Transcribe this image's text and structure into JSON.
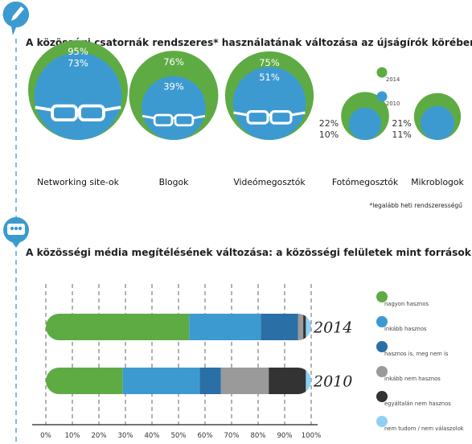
{
  "section1": {
    "title": "A közösségi csatornák rendszeres* használatának változása az újságírók körében",
    "footnote": "*legalább heti rendszerességű",
    "legend": [
      {
        "label": "2014",
        "color": "#5eab44"
      },
      {
        "label": "2010",
        "color": "#3d9ad1"
      }
    ]
  },
  "section2": {
    "title": "A közösségi média megítélésének változása: a közösségi felületek mint források hasznossága",
    "legend": [
      {
        "label": "nagyon hasznos",
        "color": "#5eab44"
      },
      {
        "label": "inkább hasznos",
        "color": "#3d9ad1"
      },
      {
        "label": "hasznos is, meg nem is",
        "color": "#2a6fa6"
      },
      {
        "label": "inkább nem hasznos",
        "color": "#9a9a9a"
      },
      {
        "label": "egyáltalán nem hasznos",
        "color": "#333333"
      },
      {
        "label": "nem tudom / nem válaszolok",
        "color": "#8fd0f2"
      }
    ]
  },
  "chart_data": [
    {
      "type": "bubble",
      "title": "A közösségi csatornák rendszeres* használatának változása az újságírók körében",
      "categories": [
        "Networking site-ok",
        "Blogok",
        "Videómegosztók",
        "Fotómegosztók",
        "Mikroblogok"
      ],
      "series": [
        {
          "name": "2014",
          "values": [
            95,
            76,
            75,
            22,
            21
          ],
          "labels": [
            "95%",
            "76%",
            "75%",
            "22%",
            "21%"
          ]
        },
        {
          "name": "2010",
          "values": [
            73,
            39,
            51,
            10,
            11
          ],
          "labels": [
            "73%",
            "39%",
            "51%",
            "10%",
            "11%"
          ]
        }
      ],
      "unit": "%",
      "legend_position": "right"
    },
    {
      "type": "stacked-bar",
      "orientation": "horizontal",
      "title": "A közösségi média megítélésének változása: a közösségi felületek mint források hasznossága",
      "categories": [
        "2014",
        "2010"
      ],
      "series": [
        {
          "name": "nagyon hasznos",
          "values": [
            54,
            29
          ]
        },
        {
          "name": "inkább hasznos",
          "values": [
            27,
            29
          ]
        },
        {
          "name": "hasznos is, meg nem is",
          "values": [
            14,
            8
          ]
        },
        {
          "name": "inkább nem hasznos",
          "values": [
            2,
            18
          ]
        },
        {
          "name": "egyáltalán nem hasznos",
          "values": [
            1,
            14
          ]
        },
        {
          "name": "nem tudom / nem válaszolok",
          "values": [
            3,
            2
          ]
        }
      ],
      "xlim": [
        0,
        100
      ],
      "x_ticks": [
        "0%",
        "10%",
        "20%",
        "30%",
        "40%",
        "50%",
        "60%",
        "70%",
        "80%",
        "90%",
        "100%"
      ],
      "grid": true,
      "legend_position": "right"
    }
  ]
}
